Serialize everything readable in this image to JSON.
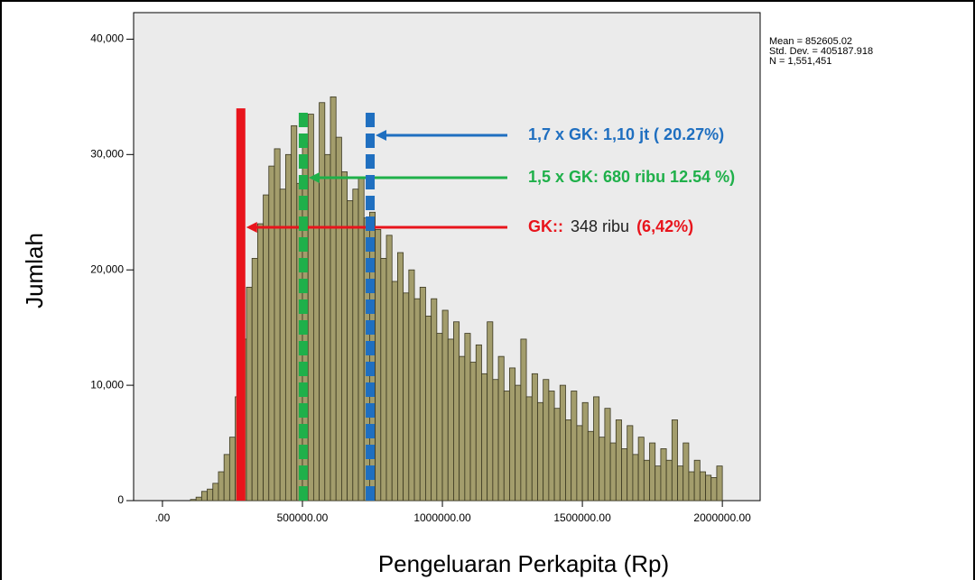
{
  "chart_data": {
    "type": "histogram",
    "x_label": "Pengeluaran Perkapita (Rp)",
    "y_label": "Jumlah",
    "bins": [
      100000,
      120000,
      140000,
      160000,
      180000,
      200000,
      220000,
      240000,
      260000,
      280000,
      300000,
      320000,
      340000,
      360000,
      380000,
      400000,
      420000,
      440000,
      460000,
      480000,
      500000,
      520000,
      540000,
      560000,
      580000,
      600000,
      620000,
      640000,
      660000,
      680000,
      700000,
      720000,
      740000,
      760000,
      780000,
      800000,
      820000,
      840000,
      860000,
      880000,
      900000,
      920000,
      940000,
      960000,
      980000,
      1000000,
      1020000,
      1040000,
      1060000,
      1080000,
      1100000,
      1120000,
      1140000,
      1160000,
      1180000,
      1200000,
      1220000,
      1240000,
      1260000,
      1280000,
      1300000,
      1320000,
      1340000,
      1360000,
      1380000,
      1400000,
      1420000,
      1440000,
      1460000,
      1480000,
      1500000,
      1520000,
      1540000,
      1560000,
      1580000,
      1600000,
      1620000,
      1640000,
      1660000,
      1680000,
      1700000,
      1720000,
      1740000,
      1760000,
      1780000,
      1800000,
      1820000,
      1840000,
      1860000,
      1880000,
      1900000,
      1920000,
      1940000,
      1960000,
      1980000,
      2000000
    ],
    "values": [
      100,
      300,
      800,
      1000,
      1500,
      2500,
      4000,
      5500,
      9000,
      14000,
      18500,
      21000,
      24000,
      26500,
      29000,
      30500,
      27000,
      30000,
      32500,
      27500,
      31000,
      33500,
      28000,
      34500,
      30000,
      35000,
      31500,
      28500,
      26000,
      27000,
      28000,
      24500,
      25000,
      23500,
      21000,
      23000,
      19000,
      21500,
      18000,
      20000,
      17500,
      18500,
      16000,
      17500,
      14500,
      16500,
      14000,
      15500,
      12500,
      14500,
      12000,
      13500,
      11000,
      15500,
      10500,
      12500,
      9500,
      11500,
      10000,
      14000,
      9000,
      11000,
      8500,
      10500,
      9500,
      8000,
      10000,
      7000,
      9500,
      6500,
      8500,
      6000,
      9000,
      5500,
      8000,
      5000,
      7000,
      4500,
      6500,
      4000,
      5500,
      3500,
      5000,
      3000,
      4500,
      3500,
      7000,
      3000,
      5000,
      2500,
      3500,
      2500,
      2200,
      2000,
      3000
    ],
    "color": "#a39d6c",
    "xlim": [
      -103000,
      2135000
    ],
    "ylim": [
      0,
      42300
    ],
    "xticks": [
      {
        "value": 0,
        "label": ".00"
      },
      {
        "value": 500000,
        "label": "500000.00"
      },
      {
        "value": 1000000,
        "label": "1000000.00"
      },
      {
        "value": 1500000,
        "label": "1500000.00"
      },
      {
        "value": 2000000,
        "label": "2000000.00"
      }
    ],
    "yticks": [
      0,
      {
        "value": 10000,
        "label": "10,000"
      },
      {
        "value": 20000,
        "label": "20,000"
      },
      {
        "value": 30000,
        "label": "30,000"
      },
      {
        "value": 40000,
        "label": "40,000"
      }
    ],
    "stats": [
      "Mean = 852605.02",
      "Std. Dev. = 405187.918",
      "N = 1,551,451"
    ],
    "reference_lines": [
      {
        "x": 280000,
        "top": 34000,
        "color": "#e8141c",
        "dashed": false,
        "parts": [
          {
            "text": "GK::",
            "color": "#e8141c",
            "bold": true
          },
          {
            "text": "348 ribu",
            "color": "#222222",
            "bold": false
          },
          {
            "text": "(6,42%)",
            "color": "#e8141c",
            "bold": true
          }
        ]
      },
      {
        "x": 503000,
        "top": 34000,
        "color": "#1fb04a",
        "dashed": true,
        "parts": [
          {
            "text": "1,5 x GK: 680 ribu 12.54 %)",
            "color": "#1fb04a",
            "bold": true
          }
        ]
      },
      {
        "x": 742000,
        "top": 34000,
        "color": "#1f6fc0",
        "dashed": true,
        "parts": [
          {
            "text": "1,7 x GK: 1,10 jt ( 20.27%)",
            "color": "#1f6fc0",
            "bold": true
          }
        ]
      }
    ]
  }
}
